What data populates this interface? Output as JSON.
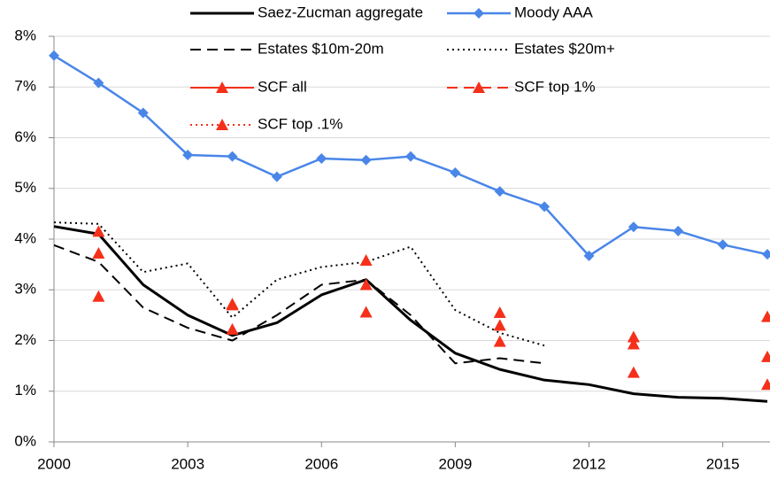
{
  "chart_data": {
    "type": "line",
    "x": [
      2000,
      2001,
      2002,
      2003,
      2004,
      2005,
      2006,
      2007,
      2008,
      2009,
      2010,
      2011,
      2012,
      2013,
      2014,
      2015,
      2016
    ],
    "xlim": [
      2000,
      2016
    ],
    "xticks": [
      2000,
      2003,
      2006,
      2009,
      2012,
      2015
    ],
    "ylim": [
      0,
      8
    ],
    "yticks": [
      {
        "value": 0,
        "label": "0%"
      },
      {
        "value": 1,
        "label": "1%"
      },
      {
        "value": 2,
        "label": "2%"
      },
      {
        "value": 3,
        "label": "3%"
      },
      {
        "value": 4,
        "label": "4%"
      },
      {
        "value": 5,
        "label": "5%"
      },
      {
        "value": 6,
        "label": "6%"
      },
      {
        "value": 7,
        "label": "7%"
      },
      {
        "value": 8,
        "label": "8%"
      }
    ],
    "grid": true,
    "legend": "top",
    "series": [
      {
        "name": "Saez-Zucman aggregate",
        "color": "#000000",
        "dash": "solid",
        "width": 3,
        "values": [
          4.25,
          4.1,
          3.1,
          2.5,
          2.1,
          2.35,
          2.9,
          3.2,
          2.4,
          1.75,
          1.43,
          1.22,
          1.13,
          0.95,
          0.88,
          0.86,
          0.8
        ]
      },
      {
        "name": "Moody AAA",
        "color": "#4a86e8",
        "dash": "solid",
        "width": 2.5,
        "marker": "diamond",
        "values": [
          7.62,
          7.08,
          6.49,
          5.66,
          5.63,
          5.23,
          5.59,
          5.56,
          5.63,
          5.31,
          4.94,
          4.64,
          3.67,
          4.24,
          4.16,
          3.89,
          3.7
        ]
      },
      {
        "name": "Estates $10m-20m",
        "color": "#000000",
        "dash": "dashed",
        "width": 2,
        "values": [
          3.88,
          3.55,
          2.65,
          2.25,
          2.0,
          2.5,
          3.1,
          3.2,
          2.5,
          1.55,
          1.65,
          1.55,
          null,
          null,
          null,
          null,
          null
        ]
      },
      {
        "name": "Estates $20m+",
        "color": "#000000",
        "dash": "dotted",
        "width": 2,
        "values": [
          4.33,
          4.3,
          3.35,
          3.52,
          2.45,
          3.2,
          3.45,
          3.55,
          3.85,
          2.6,
          2.15,
          1.9,
          null,
          null,
          null,
          null,
          null
        ]
      },
      {
        "name": "SCF all",
        "color": "#f5301a",
        "dash": "solid",
        "width": 2,
        "marker": "triangle",
        "values": [
          null,
          3.72,
          null,
          null,
          2.22,
          null,
          null,
          2.56,
          null,
          null,
          1.98,
          null,
          null,
          1.37,
          null,
          null,
          1.13
        ]
      },
      {
        "name": "SCF top 1%",
        "color": "#f5301a",
        "dash": "dashed",
        "width": 2,
        "marker": "triangle",
        "values": [
          null,
          4.15,
          null,
          null,
          2.7,
          null,
          null,
          3.58,
          null,
          null,
          2.3,
          null,
          null,
          1.93,
          null,
          null,
          1.68
        ]
      },
      {
        "name": "SCF top .1%",
        "color": "#f5301a",
        "dash": "dotted",
        "width": 2,
        "marker": "triangle",
        "values": [
          null,
          2.87,
          null,
          null,
          2.72,
          null,
          null,
          3.1,
          null,
          null,
          2.55,
          null,
          null,
          2.07,
          null,
          null,
          2.47
        ]
      }
    ]
  }
}
